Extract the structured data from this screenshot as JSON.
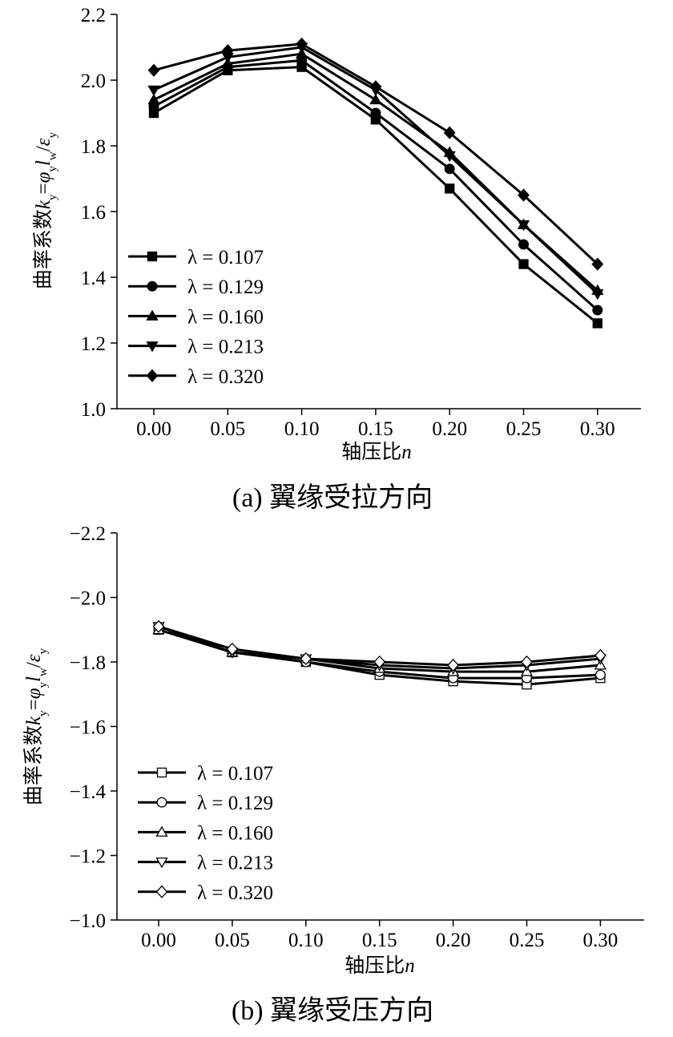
{
  "chart_data": [
    {
      "type": "line",
      "panel": "a",
      "caption": "(a)  翼缘受拉方向",
      "xlabel": "轴压比n",
      "ylabel": "曲率系数k=φl/ε",
      "x": [
        0.0,
        0.05,
        0.1,
        0.15,
        0.2,
        0.25,
        0.3
      ],
      "x_tick_labels": [
        "0.00",
        "0.05",
        "0.10",
        "0.15",
        "0.20",
        "0.25",
        "0.30"
      ],
      "ylim": [
        1.0,
        2.2
      ],
      "y_tick_labels": [
        "1.0",
        "1.2",
        "1.4",
        "1.6",
        "1.8",
        "2.0",
        "2.2"
      ],
      "legend_position": "lower-left",
      "series": [
        {
          "name": "λ = 0.107",
          "marker": "square",
          "fill": "filled",
          "values": [
            1.9,
            2.03,
            2.04,
            1.88,
            1.67,
            1.44,
            1.26
          ]
        },
        {
          "name": "λ = 0.129",
          "marker": "circle",
          "fill": "filled",
          "values": [
            1.92,
            2.04,
            2.06,
            1.9,
            1.73,
            1.5,
            1.3
          ]
        },
        {
          "name": "λ = 0.160",
          "marker": "triangle-up",
          "fill": "filled",
          "values": [
            1.94,
            2.05,
            2.08,
            1.94,
            1.78,
            1.56,
            1.36
          ]
        },
        {
          "name": "λ = 0.213",
          "marker": "triangle-down",
          "fill": "filled",
          "values": [
            1.97,
            2.07,
            2.1,
            1.97,
            1.77,
            1.56,
            1.35
          ]
        },
        {
          "name": "λ = 0.320",
          "marker": "diamond",
          "fill": "filled",
          "values": [
            2.03,
            2.09,
            2.11,
            1.98,
            1.84,
            1.65,
            1.44
          ]
        }
      ]
    },
    {
      "type": "line",
      "panel": "b",
      "caption": "(b)  翼缘受压方向",
      "xlabel": "轴压比n",
      "ylabel": "曲率系数k=φl/ε",
      "x": [
        0.0,
        0.05,
        0.1,
        0.15,
        0.2,
        0.25,
        0.3
      ],
      "x_tick_labels": [
        "0.00",
        "0.05",
        "0.10",
        "0.15",
        "0.20",
        "0.25",
        "0.30"
      ],
      "ylim": [
        -1.0,
        -2.2
      ],
      "y_tick_labels": [
        "−1.0",
        "−1.2",
        "−1.4",
        "−1.6",
        "−1.8",
        "−2.0",
        "−2.2"
      ],
      "legend_position": "lower-left",
      "series": [
        {
          "name": "λ = 0.107",
          "marker": "square",
          "fill": "open",
          "values": [
            -1.9,
            -1.83,
            -1.8,
            -1.76,
            -1.74,
            -1.73,
            -1.75
          ]
        },
        {
          "name": "λ = 0.129",
          "marker": "circle",
          "fill": "open",
          "values": [
            -1.9,
            -1.83,
            -1.8,
            -1.77,
            -1.75,
            -1.75,
            -1.76
          ]
        },
        {
          "name": "λ = 0.160",
          "marker": "triangle-up",
          "fill": "open",
          "values": [
            -1.9,
            -1.83,
            -1.81,
            -1.78,
            -1.77,
            -1.77,
            -1.79
          ]
        },
        {
          "name": "λ = 0.213",
          "marker": "triangle-down",
          "fill": "open",
          "values": [
            -1.91,
            -1.83,
            -1.81,
            -1.79,
            -1.78,
            -1.79,
            -1.81
          ]
        },
        {
          "name": "λ = 0.320",
          "marker": "diamond",
          "fill": "open",
          "values": [
            -1.91,
            -1.84,
            -1.81,
            -1.8,
            -1.79,
            -1.8,
            -1.82
          ]
        }
      ]
    }
  ]
}
